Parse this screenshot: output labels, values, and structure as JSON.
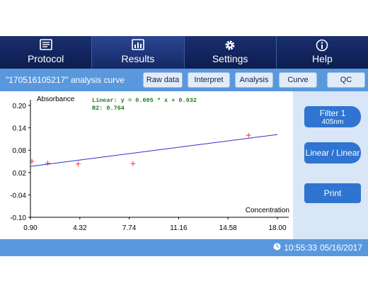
{
  "nav": {
    "tabs": [
      {
        "label": "Protocol",
        "icon": "clipboard-icon",
        "active": false
      },
      {
        "label": "Results",
        "icon": "report-icon",
        "active": true
      },
      {
        "label": "Settings",
        "icon": "gear-icon",
        "active": false
      },
      {
        "label": "Help",
        "icon": "info-icon",
        "active": false
      }
    ]
  },
  "toolbar": {
    "title": "\"170516105217\" analysis curve",
    "buttons": [
      "Raw data",
      "Interpret",
      "Analysis",
      "Curve",
      "QC"
    ]
  },
  "chart_data": {
    "type": "scatter",
    "ylabel": "Absorbance",
    "xlabel": "Concentration",
    "x_ticks": [
      "0.90",
      "4.32",
      "7.74",
      "11.16",
      "14.58",
      "18.00"
    ],
    "y_ticks": [
      "0.20",
      "0.14",
      "0.08",
      "0.02",
      "-0.04",
      "-0.10"
    ],
    "xlim": [
      0.9,
      18.0
    ],
    "ylim": [
      -0.1,
      0.2
    ],
    "points": [
      {
        "x": 1.0,
        "y": 0.05
      },
      {
        "x": 2.1,
        "y": 0.045
      },
      {
        "x": 4.2,
        "y": 0.043
      },
      {
        "x": 8.0,
        "y": 0.044
      },
      {
        "x": 16.0,
        "y": 0.12
      }
    ],
    "fit_line": {
      "slope": 0.005,
      "intercept": 0.032,
      "color": "#2d2dd8"
    },
    "point_color": "#ff3030",
    "equation": "Linear:  y = 0.005 * x + 0.032",
    "r2": "R2:  0.764",
    "annotation_color": "#1f7a1f"
  },
  "side": {
    "filter_line1": "Filter 1",
    "filter_line2": "405nm",
    "scale": "Linear / Linear",
    "print": "Print"
  },
  "status": {
    "time": "10:55:33",
    "date": "05/16/2017"
  }
}
